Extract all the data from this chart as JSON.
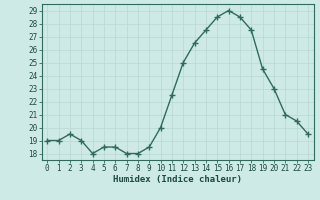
{
  "x": [
    0,
    1,
    2,
    3,
    4,
    5,
    6,
    7,
    8,
    9,
    10,
    11,
    12,
    13,
    14,
    15,
    16,
    17,
    18,
    19,
    20,
    21,
    22,
    23
  ],
  "y": [
    19,
    19,
    19.5,
    19,
    18,
    18.5,
    18.5,
    18,
    18,
    18.5,
    20,
    22.5,
    25,
    26.5,
    27.5,
    28.5,
    29,
    28.5,
    27.5,
    24.5,
    23,
    21,
    20.5,
    19.5
  ],
  "line_color": "#2e6b5e",
  "marker": "+",
  "marker_size": 4,
  "marker_linewidth": 1.0,
  "xlabel": "Humidex (Indice chaleur)",
  "yticks": [
    18,
    19,
    20,
    21,
    22,
    23,
    24,
    25,
    26,
    27,
    28,
    29
  ],
  "xticks": [
    0,
    1,
    2,
    3,
    4,
    5,
    6,
    7,
    8,
    9,
    10,
    11,
    12,
    13,
    14,
    15,
    16,
    17,
    18,
    19,
    20,
    21,
    22,
    23
  ],
  "xlim": [
    -0.5,
    23.5
  ],
  "ylim": [
    17.5,
    29.5
  ],
  "bg_color": "#ceeae7",
  "grid_color": "#b8d8d4",
  "tick_label_fontsize": 5.5,
  "xlabel_fontsize": 6.5,
  "line_width": 1.0,
  "spine_color": "#2e6b5e"
}
